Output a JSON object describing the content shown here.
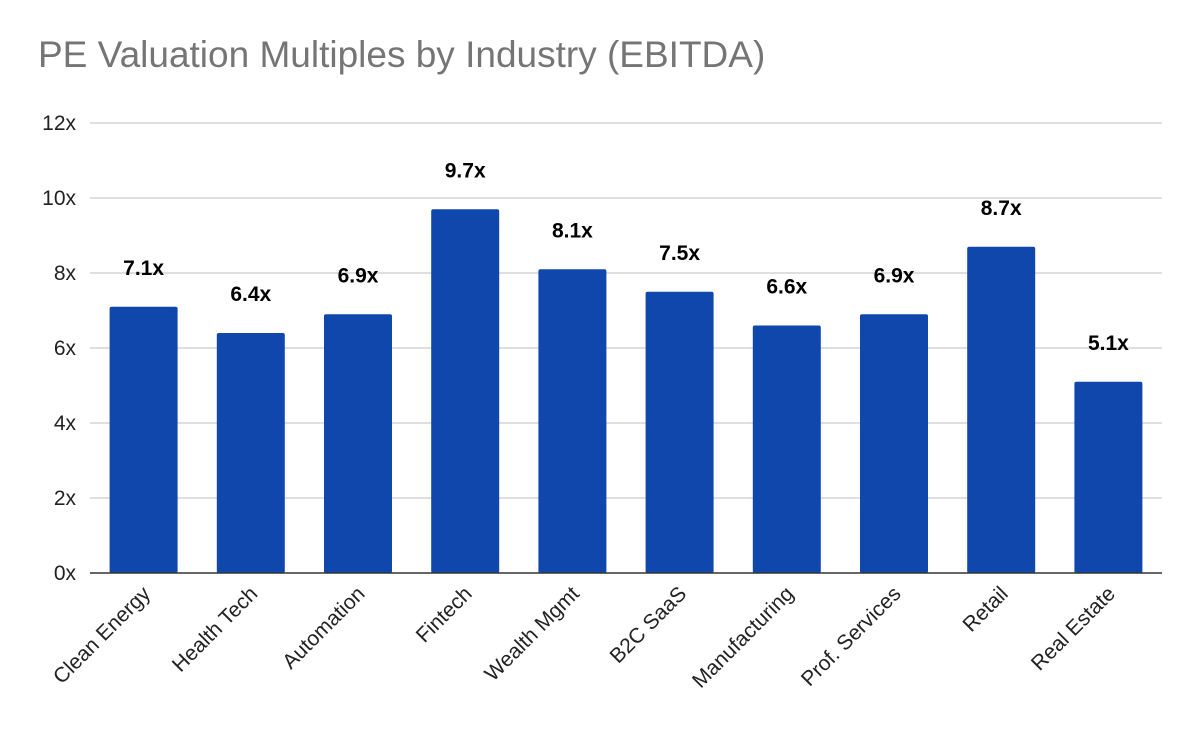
{
  "chart_data": {
    "type": "bar",
    "title": "PE Valuation Multiples by Industry (EBITDA)",
    "xlabel": "",
    "ylabel": "",
    "categories": [
      "Clean Energy",
      "Health Tech",
      "Automation",
      "Fintech",
      "Wealth Mgmt",
      "B2C SaaS",
      "Manufacturing",
      "Prof. Services",
      "Retail",
      "Real Estate"
    ],
    "values": [
      7.1,
      6.4,
      6.9,
      9.7,
      8.1,
      7.5,
      6.6,
      6.9,
      8.7,
      5.1
    ],
    "data_labels": [
      "7.1x",
      "6.4x",
      "6.9x",
      "9.7x",
      "8.1x",
      "7.5x",
      "6.6x",
      "6.9x",
      "8.7x",
      "5.1x"
    ],
    "ylim": [
      0,
      12
    ],
    "yticks": [
      0,
      2,
      4,
      6,
      8,
      10,
      12
    ],
    "ytick_labels": [
      "0x",
      "2x",
      "4x",
      "6x",
      "8x",
      "10x",
      "12x"
    ],
    "grid": true,
    "legend": "none",
    "bar_color": "#0f47ad",
    "grid_color": "#cccccc",
    "axis_color": "#333333"
  }
}
